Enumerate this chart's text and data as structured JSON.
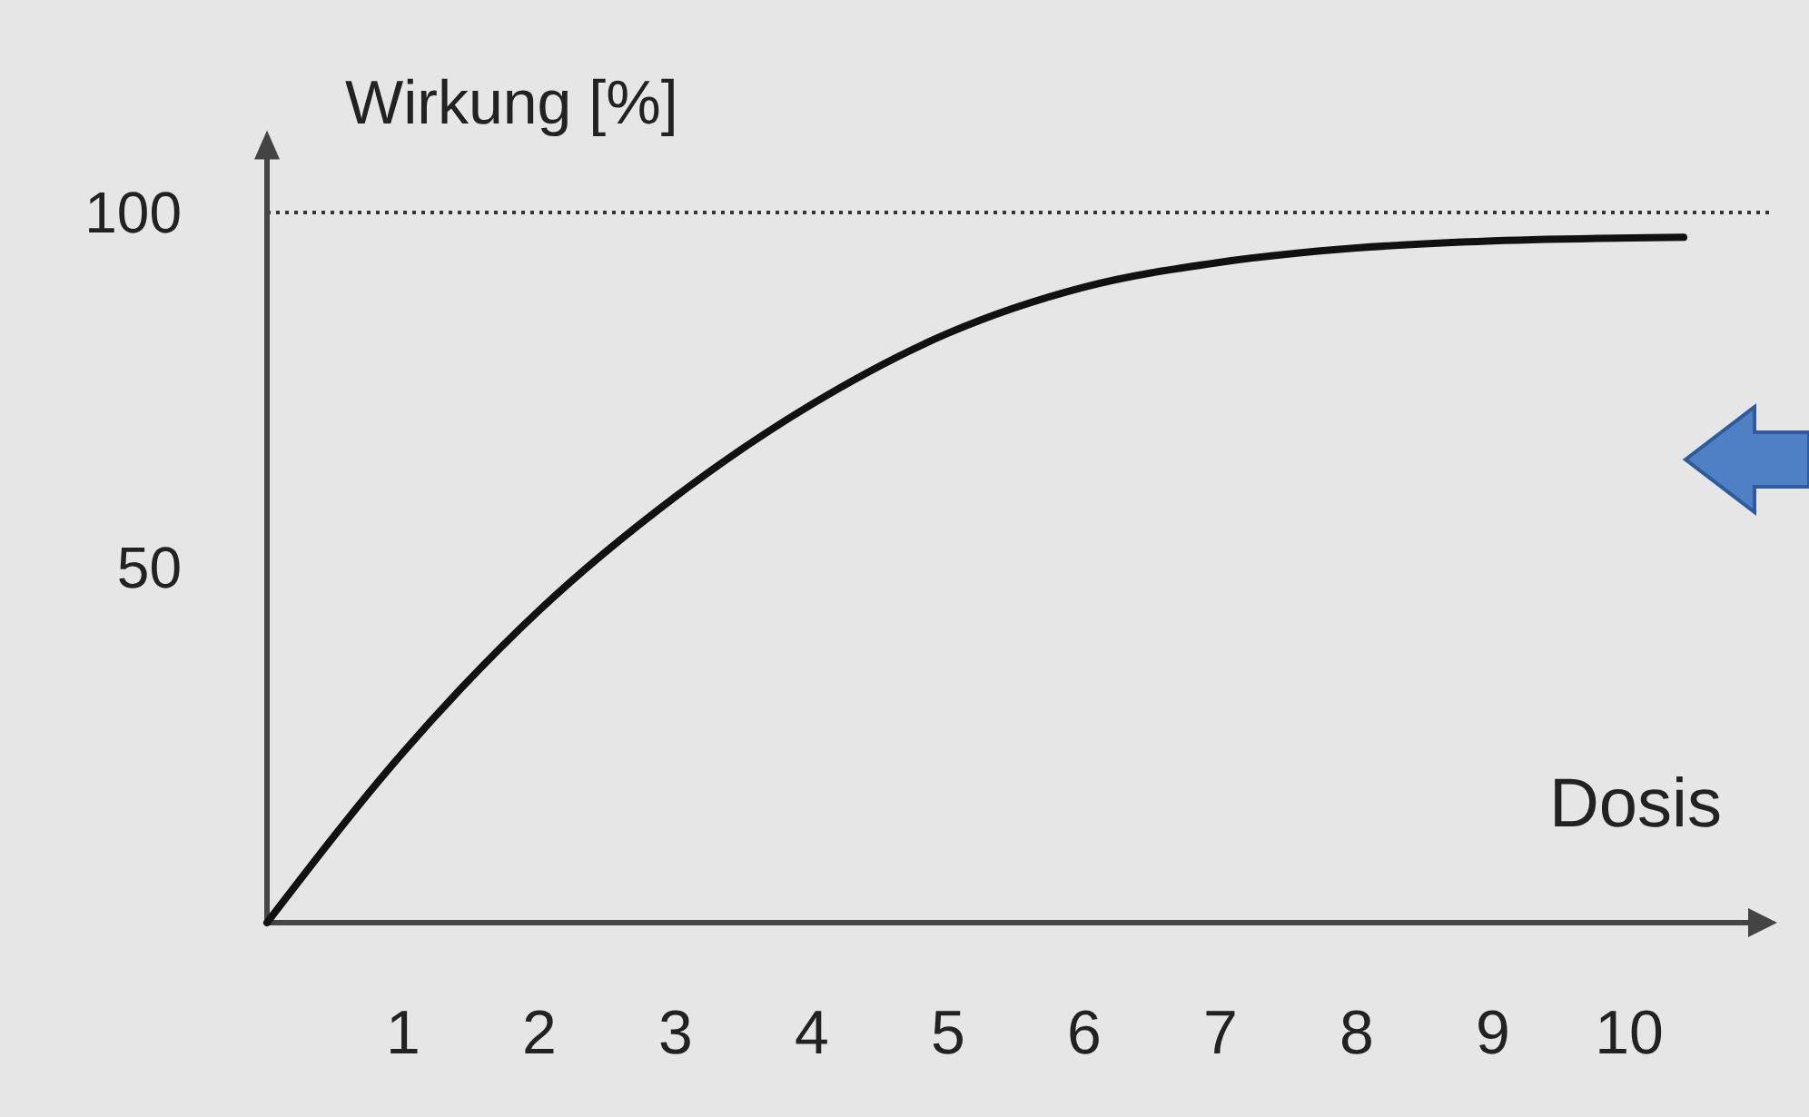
{
  "chart_data": {
    "type": "line",
    "xlabel": "Dosis",
    "ylabel": "Wirkung [%]",
    "x": [
      0,
      1,
      2,
      3,
      4,
      5,
      6,
      7,
      8,
      9,
      10.4
    ],
    "series": [
      {
        "color": "#111111",
        "values": [
          0,
          24,
          44,
          60,
          73,
          83,
          89.5,
          93,
          95,
          96,
          96.5
        ]
      }
    ],
    "xlim": [
      0,
      10.9
    ],
    "ylim": [
      0,
      108
    ],
    "xticks": [
      1,
      2,
      3,
      4,
      5,
      6,
      7,
      8,
      9,
      10
    ],
    "yticks": [
      50,
      100
    ],
    "ref_lines": [
      {
        "axis": "y",
        "value": 100,
        "line_style": "dotted",
        "color": "#333333"
      }
    ],
    "marker": "none",
    "line_style": "solid"
  }
}
